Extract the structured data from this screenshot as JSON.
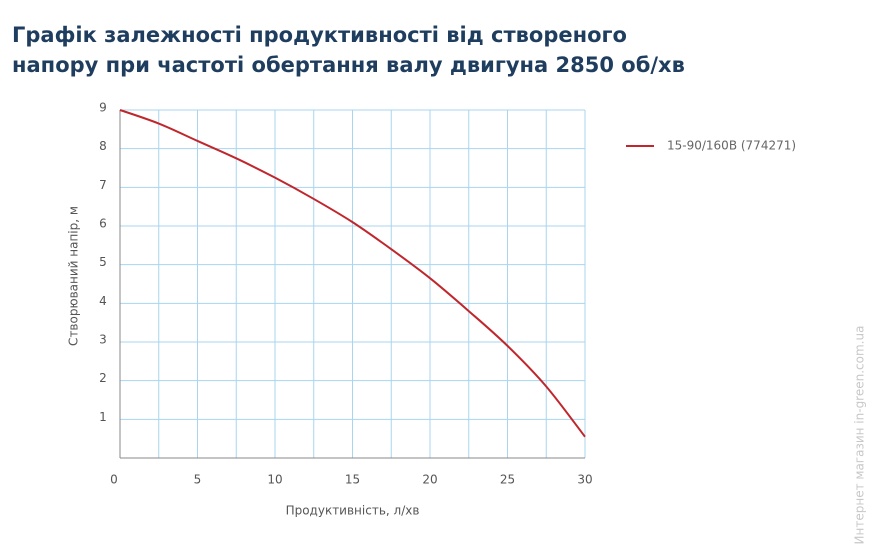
{
  "chart_data": {
    "type": "line",
    "title": "Графік залежності продуктивності від створеного напору при частоті обертання валу двигуна 2850 об/хв",
    "x_label": "Продуктивність, л/хв",
    "y_label": "Створюваний напір, м",
    "x": [
      0,
      2.5,
      5,
      7.5,
      10,
      12.5,
      15,
      17.5,
      20,
      22.5,
      25,
      27.5,
      30
    ],
    "series": [
      {
        "name": "15-90/160B (774271)",
        "color": "#c0272d",
        "values": [
          9.0,
          8.65,
          8.2,
          7.75,
          7.25,
          6.7,
          6.1,
          5.4,
          4.65,
          3.8,
          2.9,
          1.85,
          0.55
        ]
      }
    ],
    "xlim": [
      0,
      30
    ],
    "ylim": [
      0,
      9
    ],
    "xticks": [
      0,
      5,
      10,
      15,
      20,
      25,
      30
    ],
    "yticks": [
      1,
      2,
      3,
      4,
      5,
      6,
      7,
      8,
      9
    ],
    "grid": true,
    "grid_color": "#a9d5ef",
    "legend": "right",
    "watermark": "Интернет магазин  in-green.com.ua"
  }
}
